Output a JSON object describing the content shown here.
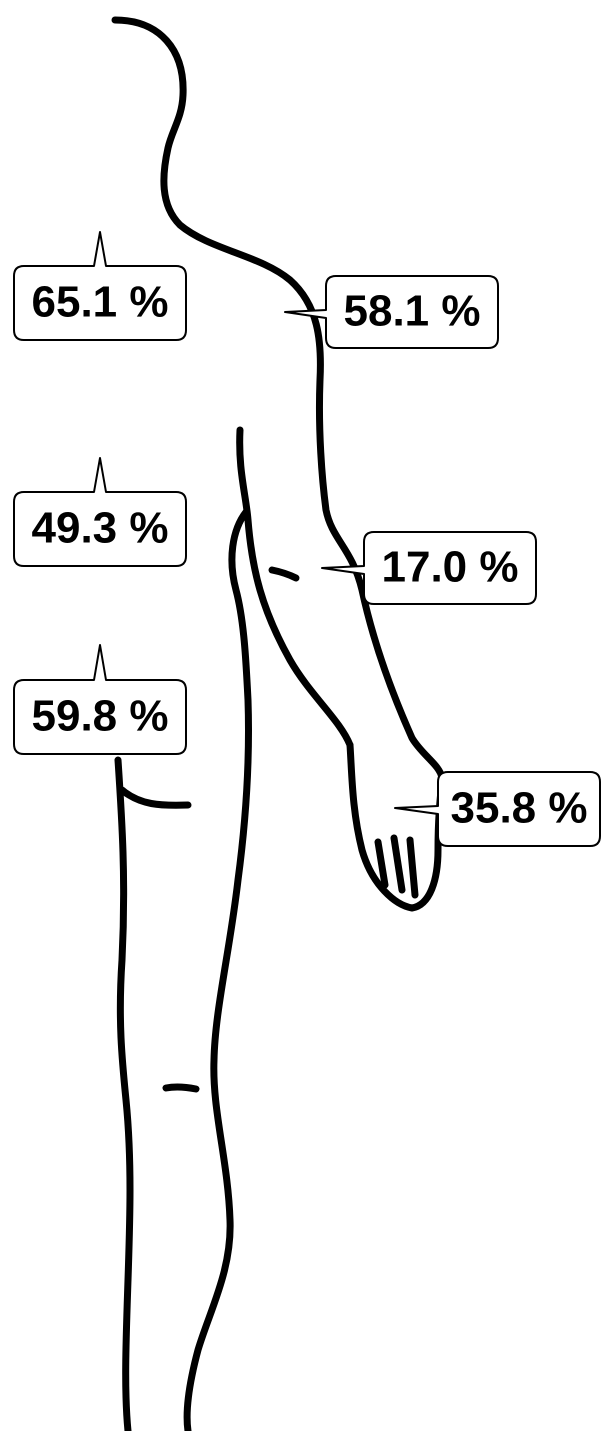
{
  "callouts": [
    {
      "label": "65.1 %"
    },
    {
      "label": "58.1 %"
    },
    {
      "label": "49.3 %"
    },
    {
      "label": "17.0 %"
    },
    {
      "label": "59.8 %"
    },
    {
      "label": "35.8 %"
    }
  ]
}
